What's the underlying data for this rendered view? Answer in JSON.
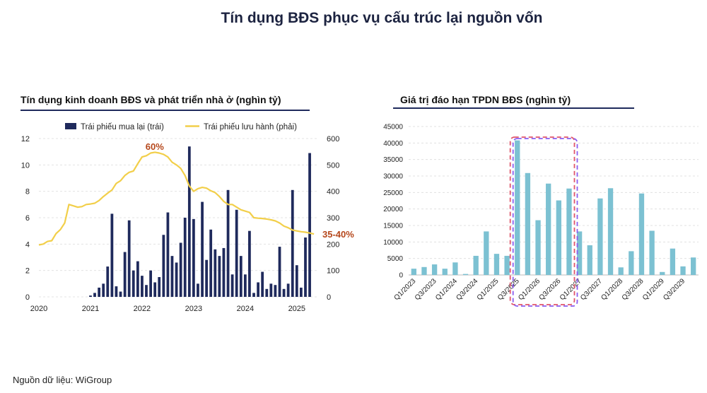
{
  "page": {
    "title": "Tín dụng BĐS phục vụ cấu trúc lại nguồn vốn",
    "source": "Nguồn dữ liệu: WiGroup"
  },
  "colors": {
    "navy": "#1f2a5c",
    "yellow": "#f2cf4a",
    "teal": "#7cc1d2",
    "annot": "#b5471b",
    "red_dash": "#e0556a",
    "purple_dash": "#8a5cf0"
  },
  "chart_data": [
    {
      "type": "bar",
      "title": "Tín dụng kinh doanh BĐS và phát triển nhà ở (nghìn tỷ)",
      "x_tick_labels": [
        "2020",
        "2021",
        "2022",
        "2023",
        "2024",
        "2025"
      ],
      "yleft_ticks": [
        "0",
        "2",
        "4",
        "6",
        "8",
        "10",
        "12"
      ],
      "yright_ticks": [
        "0",
        "100",
        "200",
        "300",
        "400",
        "500",
        "600"
      ],
      "ylim_left": [
        0,
        12
      ],
      "ylim_right": [
        0,
        600
      ],
      "legend_position": "top",
      "series": [
        {
          "name": "Trái phiếu mua lại (trái)",
          "type": "bar",
          "axis": "left",
          "x": [
            2021.0,
            2021.083,
            2021.167,
            2021.25,
            2021.333,
            2021.417,
            2021.5,
            2021.583,
            2021.667,
            2021.75,
            2021.833,
            2021.917,
            2022.0,
            2022.083,
            2022.167,
            2022.25,
            2022.333,
            2022.417,
            2022.5,
            2022.583,
            2022.667,
            2022.75,
            2022.833,
            2022.917,
            2023.0,
            2023.083,
            2023.167,
            2023.25,
            2023.333,
            2023.417,
            2023.5,
            2023.583,
            2023.667,
            2023.75,
            2023.833,
            2023.917,
            2024.0,
            2024.083,
            2024.167,
            2024.25,
            2024.333,
            2024.417,
            2024.5,
            2024.583,
            2024.667,
            2024.75,
            2024.833,
            2024.917,
            2025.0,
            2025.083,
            2025.167,
            2025.25,
            2025.333
          ],
          "values": [
            0.1,
            0.3,
            0.7,
            1.0,
            2.3,
            6.3,
            0.8,
            0.4,
            3.4,
            5.8,
            2.0,
            2.7,
            1.6,
            0.9,
            2.0,
            1.1,
            1.5,
            4.7,
            6.4,
            3.1,
            2.6,
            4.1,
            6.0,
            11.4,
            5.9,
            1.0,
            7.2,
            2.8,
            5.1,
            3.6,
            3.1,
            3.7,
            8.1,
            1.7,
            6.6,
            3.1,
            1.7,
            5.0,
            0.3,
            1.1,
            1.9,
            0.6,
            1.0,
            0.9,
            3.8,
            0.6,
            1.0,
            8.1,
            2.4,
            0.7,
            4.5,
            10.9,
            0.0
          ]
        },
        {
          "name": "Trái phiếu lưu hành (phải)",
          "type": "line",
          "axis": "right",
          "x": [
            2020.0,
            2020.083,
            2020.167,
            2020.25,
            2020.333,
            2020.417,
            2020.5,
            2020.583,
            2020.667,
            2020.75,
            2020.833,
            2020.917,
            2021.0,
            2021.083,
            2021.167,
            2021.25,
            2021.333,
            2021.417,
            2021.5,
            2021.583,
            2021.667,
            2021.75,
            2021.833,
            2021.917,
            2022.0,
            2022.083,
            2022.167,
            2022.25,
            2022.333,
            2022.417,
            2022.5,
            2022.583,
            2022.667,
            2022.75,
            2022.833,
            2022.917,
            2023.0,
            2023.083,
            2023.167,
            2023.25,
            2023.333,
            2023.417,
            2023.5,
            2023.583,
            2023.667,
            2023.75,
            2023.833,
            2023.917,
            2024.0,
            2024.083,
            2024.167,
            2024.25,
            2024.333,
            2024.417,
            2024.5,
            2024.583,
            2024.667,
            2024.75,
            2024.833,
            2024.917,
            2025.0,
            2025.083,
            2025.167,
            2025.25,
            2025.333
          ],
          "values": [
            197,
            200,
            210,
            213,
            240,
            255,
            280,
            350,
            345,
            340,
            342,
            350,
            352,
            355,
            365,
            380,
            393,
            405,
            430,
            440,
            460,
            472,
            477,
            505,
            530,
            535,
            545,
            548,
            545,
            540,
            530,
            510,
            500,
            487,
            460,
            420,
            400,
            410,
            415,
            412,
            402,
            395,
            380,
            362,
            350,
            350,
            340,
            330,
            325,
            320,
            300,
            298,
            297,
            295,
            292,
            288,
            280,
            268,
            262,
            253,
            250,
            247,
            245,
            242,
            238
          ]
        }
      ],
      "annotations": [
        {
          "text": "60%",
          "x": 2022.3,
          "y_right": 548
        },
        {
          "text": "35-40%",
          "x": 2025.33,
          "y_right": 238
        }
      ]
    },
    {
      "type": "bar",
      "title": "Giá trị đáo hạn TPDN BĐS (nghìn tỷ)",
      "categories": [
        "Q1/2023",
        "Q2/2023",
        "Q3/2023",
        "Q4/2023",
        "Q1/2024",
        "Q2/2024",
        "Q3/2024",
        "Q4/2024",
        "Q1/2025",
        "Q2/2025",
        "Q3/2025",
        "Q4/2025",
        "Q1/2026",
        "Q2/2026",
        "Q3/2026",
        "Q4/2026",
        "Q1/2027",
        "Q2/2027",
        "Q3/2027",
        "Q4/2027",
        "Q1/2028",
        "Q2/2028",
        "Q3/2028",
        "Q4/2028",
        "Q1/2029",
        "Q2/2029",
        "Q3/2029",
        "Q4/2029"
      ],
      "shown_x_tick_labels": [
        "Q1/2023",
        "Q3/2023",
        "Q1/2024",
        "Q3/2024",
        "Q1/2025",
        "Q3/2025",
        "Q1/2026",
        "Q3/2026",
        "Q1/2027",
        "Q3/2027",
        "Q1/2028",
        "Q3/2028",
        "Q1/2029",
        "Q3/2029"
      ],
      "values": [
        1900,
        2400,
        3200,
        1900,
        3800,
        300,
        5800,
        13200,
        6400,
        5800,
        40800,
        30900,
        16600,
        27700,
        22600,
        26200,
        13200,
        9000,
        23200,
        26300,
        2300,
        7200,
        24700,
        13400,
        900,
        8000,
        2600,
        5300
      ],
      "y_ticks": [
        "0",
        "5000",
        "10000",
        "15000",
        "20000",
        "25000",
        "30000",
        "35000",
        "40000",
        "45000"
      ],
      "ylim": [
        0,
        45000
      ],
      "highlight_boxes": [
        {
          "style": "red-dashed",
          "from": "Q3/2025",
          "to": "Q4/2026"
        },
        {
          "style": "purple-dashed",
          "from": "Q3/2025",
          "to": "Q4/2026"
        }
      ]
    }
  ]
}
